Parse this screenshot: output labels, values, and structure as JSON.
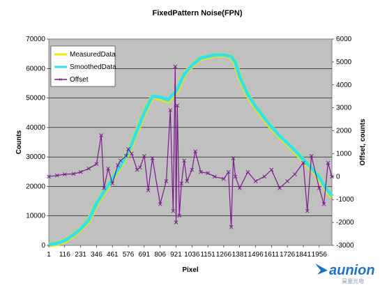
{
  "chart_data": {
    "type": "line",
    "title": "FixedPattern Noise(FPN)",
    "xlabel": "Pixel",
    "ylabel": "Counts",
    "y2label": "Offset, counts",
    "xlim": [
      1,
      2048
    ],
    "ylim": [
      0,
      70000
    ],
    "y2lim": [
      -3000,
      6000
    ],
    "x_ticks": [
      "1",
      "116",
      "231",
      "346",
      "461",
      "576",
      "691",
      "806",
      "921",
      "1036",
      "1151",
      "1266",
      "1381",
      "1496",
      "1611",
      "1726",
      "1841",
      "1956"
    ],
    "x_tick_values": [
      1,
      116,
      231,
      346,
      461,
      576,
      691,
      806,
      921,
      1036,
      1151,
      1266,
      1381,
      1496,
      1611,
      1726,
      1841,
      1956
    ],
    "y_ticks": [
      0,
      10000,
      20000,
      30000,
      40000,
      50000,
      60000,
      70000
    ],
    "y2_ticks": [
      -3000,
      -2000,
      -1000,
      0,
      1000,
      2000,
      3000,
      4000,
      5000,
      6000
    ],
    "grid": true,
    "legend": "top-left",
    "series": [
      {
        "name": "MeasuredData",
        "axis": "left",
        "color": "#f2e600",
        "x": [
          1,
          60,
          116,
          180,
          231,
          290,
          346,
          400,
          461,
          520,
          576,
          640,
          691,
          750,
          806,
          860,
          921,
          980,
          1036,
          1100,
          1151,
          1200,
          1266,
          1320,
          1350,
          1381,
          1440,
          1496,
          1560,
          1611,
          1670,
          1726,
          1780,
          1841,
          1900,
          1956,
          2000,
          2048
        ],
        "y": [
          200,
          600,
          1500,
          3500,
          5500,
          8500,
          14000,
          18000,
          22500,
          27000,
          31500,
          39000,
          45000,
          50500,
          50000,
          49000,
          52000,
          58000,
          61000,
          63500,
          64000,
          64500,
          64500,
          64000,
          62000,
          57000,
          51000,
          47000,
          43000,
          40000,
          37000,
          34500,
          32000,
          29000,
          26000,
          23000,
          19500,
          16500
        ]
      },
      {
        "name": "SmoothedData",
        "axis": "left",
        "color": "#33e0f0",
        "x": [
          1,
          60,
          116,
          180,
          231,
          290,
          346,
          400,
          461,
          520,
          576,
          640,
          691,
          750,
          806,
          860,
          921,
          980,
          1036,
          1100,
          1151,
          1200,
          1266,
          1320,
          1350,
          1381,
          1440,
          1496,
          1560,
          1611,
          1670,
          1726,
          1780,
          1841,
          1900,
          1956,
          2000,
          2048
        ],
        "y": [
          300,
          700,
          1600,
          3600,
          5600,
          8600,
          14200,
          18200,
          22600,
          27100,
          31600,
          39100,
          45100,
          50600,
          50300,
          49300,
          52300,
          58100,
          61100,
          63600,
          64100,
          64600,
          64600,
          64100,
          62200,
          57200,
          51200,
          47200,
          43200,
          40200,
          37200,
          34700,
          32200,
          29200,
          26200,
          23200,
          19700,
          16800
        ]
      },
      {
        "name": "Offset",
        "axis": "right",
        "color": "#7b1a8c",
        "x": [
          1,
          60,
          116,
          180,
          231,
          290,
          346,
          380,
          400,
          430,
          461,
          500,
          520,
          560,
          576,
          600,
          640,
          660,
          691,
          720,
          750,
          806,
          850,
          880,
          900,
          915,
          921,
          930,
          945,
          960,
          980,
          1000,
          1036,
          1060,
          1100,
          1151,
          1200,
          1266,
          1300,
          1320,
          1335,
          1350,
          1381,
          1440,
          1496,
          1560,
          1611,
          1670,
          1726,
          1780,
          1841,
          1870,
          1900,
          1956,
          1990,
          2020,
          2048
        ],
        "y": [
          0,
          50,
          100,
          120,
          200,
          350,
          550,
          1800,
          -500,
          350,
          -300,
          500,
          700,
          900,
          1200,
          1000,
          300,
          400,
          900,
          -600,
          800,
          -1200,
          -200,
          2900,
          -1500,
          4800,
          -2000,
          3100,
          -1700,
          -300,
          700,
          -200,
          300,
          1100,
          200,
          150,
          0,
          -100,
          200,
          -2200,
          800,
          0,
          -500,
          200,
          -200,
          0,
          300,
          -500,
          -200,
          100,
          600,
          -1500,
          900,
          -500,
          -1200,
          600,
          0
        ]
      }
    ]
  },
  "logo": {
    "name": "aunion",
    "subtitle": "昊量光电"
  }
}
